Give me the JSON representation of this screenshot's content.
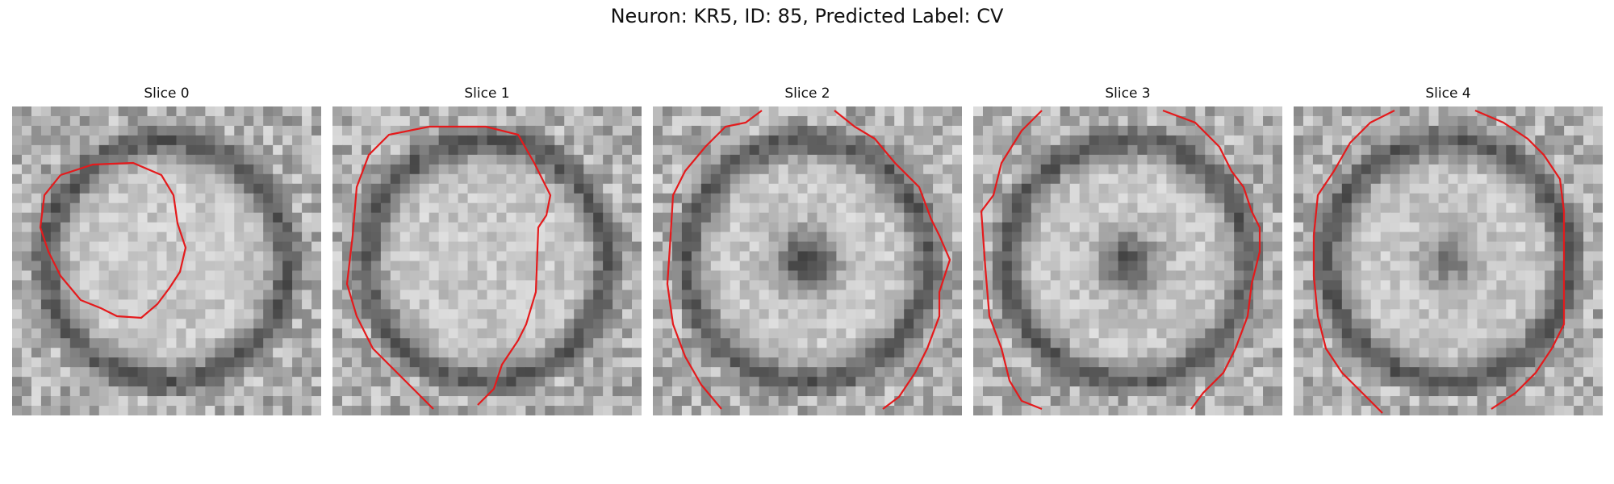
{
  "figure": {
    "title": "Neuron: KR5, ID: 85, Predicted Label: CV"
  },
  "overlay": {
    "contour_color": "#e41a1c"
  },
  "panels": [
    {
      "title": "Slice 0",
      "seed": 11,
      "dark_center": 0.0
    },
    {
      "title": "Slice 1",
      "seed": 23,
      "dark_center": 0.0
    },
    {
      "title": "Slice 2",
      "seed": 37,
      "dark_center": 0.95
    },
    {
      "title": "Slice 3",
      "seed": 41,
      "dark_center": 0.8
    },
    {
      "title": "Slice 4",
      "seed": 53,
      "dark_center": 0.5
    }
  ]
}
